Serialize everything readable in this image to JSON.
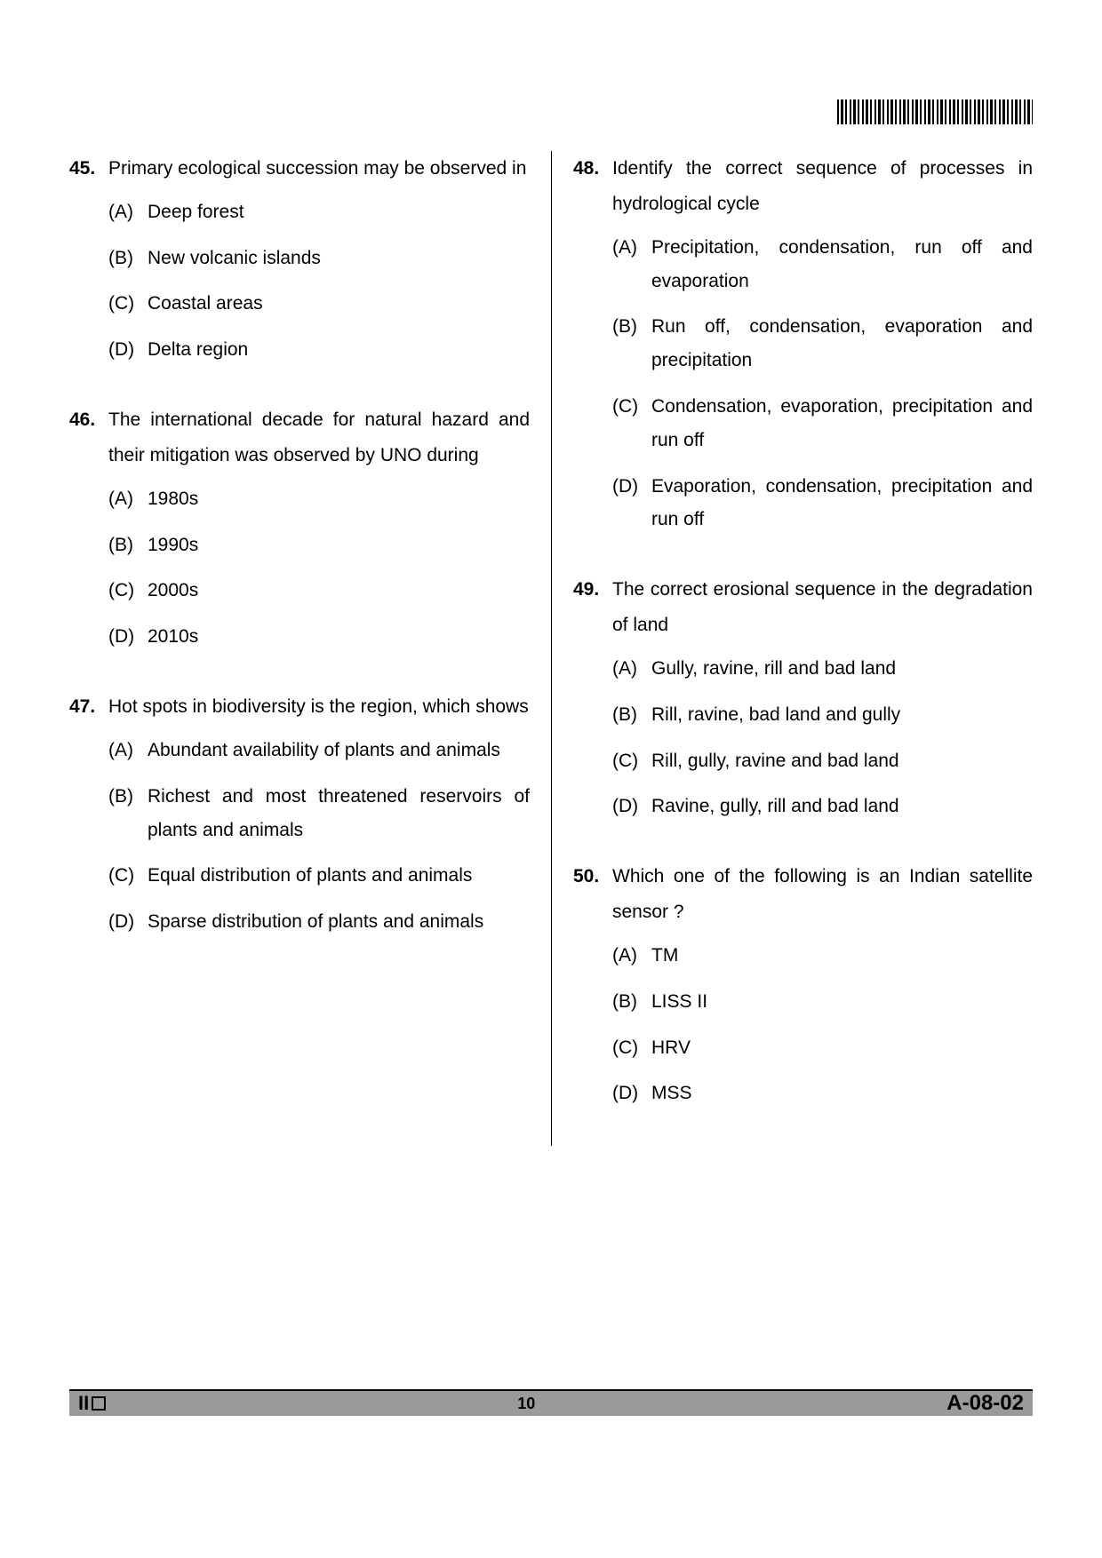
{
  "footer": {
    "left_mark": "II",
    "page_number": "10",
    "paper_code": "A-08-02"
  },
  "left_column": [
    {
      "number": "45.",
      "text": "Primary ecological succession may be observed in",
      "options": [
        {
          "label": "(A)",
          "text": "Deep forest"
        },
        {
          "label": "(B)",
          "text": "New volcanic islands"
        },
        {
          "label": "(C)",
          "text": "Coastal areas"
        },
        {
          "label": "(D)",
          "text": "Delta region"
        }
      ]
    },
    {
      "number": "46.",
      "text": "The international decade for natural hazard and their mitigation was observed by UNO during",
      "options": [
        {
          "label": "(A)",
          "text": "1980s"
        },
        {
          "label": "(B)",
          "text": "1990s"
        },
        {
          "label": "(C)",
          "text": "2000s"
        },
        {
          "label": "(D)",
          "text": "2010s"
        }
      ]
    },
    {
      "number": "47.",
      "text": "Hot spots in biodiversity is the region, which shows",
      "options": [
        {
          "label": "(A)",
          "text": "Abundant availability of plants and animals"
        },
        {
          "label": "(B)",
          "text": "Richest and most threatened reservoirs of plants and animals"
        },
        {
          "label": "(C)",
          "text": "Equal distribution of plants and animals"
        },
        {
          "label": "(D)",
          "text": "Sparse distribution of plants and animals"
        }
      ]
    }
  ],
  "right_column": [
    {
      "number": "48.",
      "text": "Identify the correct sequence of processes in hydrological cycle",
      "options": [
        {
          "label": "(A)",
          "text": "Precipitation, condensation, run off and evaporation"
        },
        {
          "label": "(B)",
          "text": "Run off, condensation, evaporation and precipitation"
        },
        {
          "label": "(C)",
          "text": "Condensation, evaporation, precipitation and run off"
        },
        {
          "label": "(D)",
          "text": "Evaporation, condensation, precipitation and run off"
        }
      ]
    },
    {
      "number": "49.",
      "text": "The correct erosional sequence in the degradation of land",
      "options": [
        {
          "label": "(A)",
          "text": "Gully, ravine, rill and bad land"
        },
        {
          "label": "(B)",
          "text": "Rill, ravine, bad land and gully"
        },
        {
          "label": "(C)",
          "text": "Rill, gully, ravine and bad land"
        },
        {
          "label": "(D)",
          "text": "Ravine, gully, rill and bad land"
        }
      ]
    },
    {
      "number": "50.",
      "text": "Which one of the following is an Indian satellite sensor ?",
      "options": [
        {
          "label": "(A)",
          "text": "TM"
        },
        {
          "label": "(B)",
          "text": "LISS II"
        },
        {
          "label": "(C)",
          "text": "HRV"
        },
        {
          "label": "(D)",
          "text": "MSS"
        }
      ]
    }
  ]
}
